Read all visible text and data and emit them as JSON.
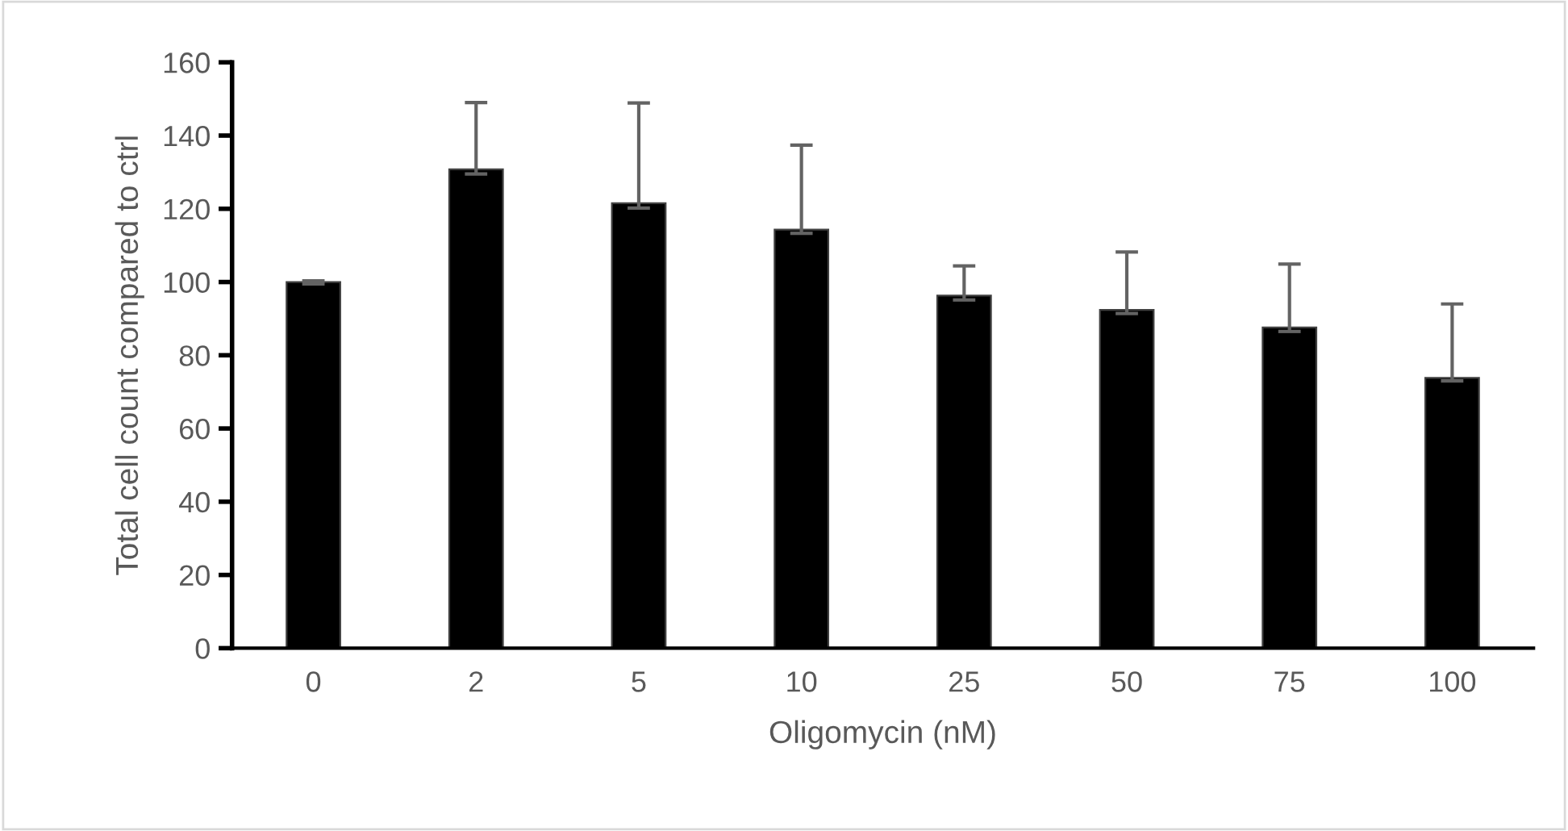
{
  "chart_data": {
    "type": "bar",
    "xlabel": "Oligomycin (nM)",
    "ylabel": "Total cell count compared to ctrl",
    "categories": [
      "0",
      "2",
      "5",
      "10",
      "25",
      "50",
      "75",
      "100"
    ],
    "values": [
      100.0,
      130.8,
      121.5,
      114.3,
      96.3,
      92.4,
      87.6,
      73.8
    ],
    "errors": [
      [
        99.5,
        100.3
      ],
      [
        129.5,
        149.0
      ],
      [
        120.2,
        148.9
      ],
      [
        113.3,
        137.4
      ],
      [
        95.1,
        104.4
      ],
      [
        91.4,
        108.2
      ],
      [
        86.5,
        104.9
      ],
      [
        73.0,
        94.0
      ]
    ],
    "color": "#000000",
    "ylim": [
      0,
      160
    ],
    "yticks": [
      0,
      20,
      40,
      60,
      80,
      100,
      120,
      140,
      160
    ],
    "grid": false,
    "legend": false
  }
}
